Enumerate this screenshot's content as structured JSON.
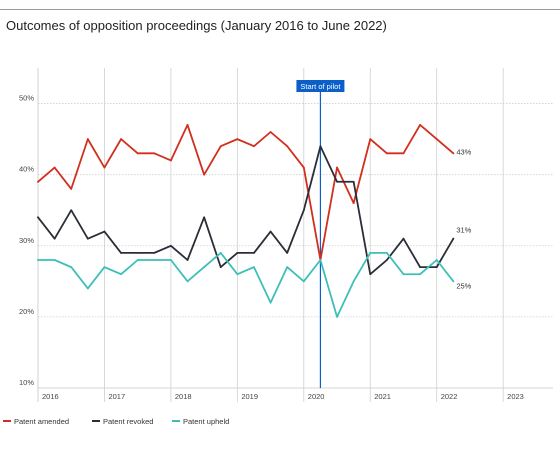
{
  "chart_data": {
    "type": "line",
    "title": "Outcomes of opposition proceedings (January 2016 to June 2022)",
    "ylabel": "",
    "xlabel": "",
    "ylim": [
      10,
      55
    ],
    "xlim": [
      2016.0,
      2023.75
    ],
    "y_ticks": [
      {
        "value": 50,
        "label": "50%"
      },
      {
        "value": 40,
        "label": "40%"
      },
      {
        "value": 30,
        "label": "30%"
      },
      {
        "value": 20,
        "label": "20%"
      },
      {
        "value": 10,
        "label": "10%"
      }
    ],
    "x_ticks": [
      {
        "value": 2016,
        "label": "2016"
      },
      {
        "value": 2017,
        "label": "2017"
      },
      {
        "value": 2018,
        "label": "2018"
      },
      {
        "value": 2019,
        "label": "2019"
      },
      {
        "value": 2020,
        "label": "2020"
      },
      {
        "value": 2021,
        "label": "2021"
      },
      {
        "value": 2022,
        "label": "2022"
      },
      {
        "value": 2023,
        "label": "2023"
      }
    ],
    "grid": true,
    "annotation": {
      "label": "Start of pilot",
      "x": 2020.25,
      "color": "#0a5fc8"
    },
    "x": [
      2016.0,
      2016.25,
      2016.5,
      2016.75,
      2017.0,
      2017.25,
      2017.5,
      2017.75,
      2018.0,
      2018.25,
      2018.5,
      2018.75,
      2019.0,
      2019.25,
      2019.5,
      2019.75,
      2020.0,
      2020.25,
      2020.5,
      2020.75,
      2021.0,
      2021.25,
      2021.5,
      2021.75,
      2022.0,
      2022.25
    ],
    "series": [
      {
        "name": "Patent amended",
        "color": "#d12f1f",
        "end_label": "43%",
        "values": [
          39,
          41,
          38,
          45,
          41,
          45,
          43,
          43,
          42,
          47,
          40,
          44,
          45,
          44,
          46,
          44,
          41,
          28,
          41,
          36,
          45,
          43,
          43,
          47,
          45,
          43
        ]
      },
      {
        "name": "Patent revoked",
        "color": "#2b2e37",
        "end_label": "31%",
        "values": [
          34,
          31,
          35,
          31,
          32,
          29,
          29,
          29,
          30,
          28,
          34,
          27,
          29,
          29,
          32,
          29,
          35,
          44,
          39,
          39,
          26,
          28,
          31,
          27,
          27,
          31
        ]
      },
      {
        "name": "Patent upheld",
        "color": "#3dbfb8",
        "end_label": "25%",
        "values": [
          28,
          28,
          27,
          24,
          27,
          26,
          28,
          28,
          28,
          25,
          27,
          29,
          26,
          27,
          22,
          27,
          25,
          28,
          20,
          25,
          29,
          29,
          26,
          26,
          28,
          25
        ]
      }
    ],
    "legend_position": "bottom-left"
  }
}
